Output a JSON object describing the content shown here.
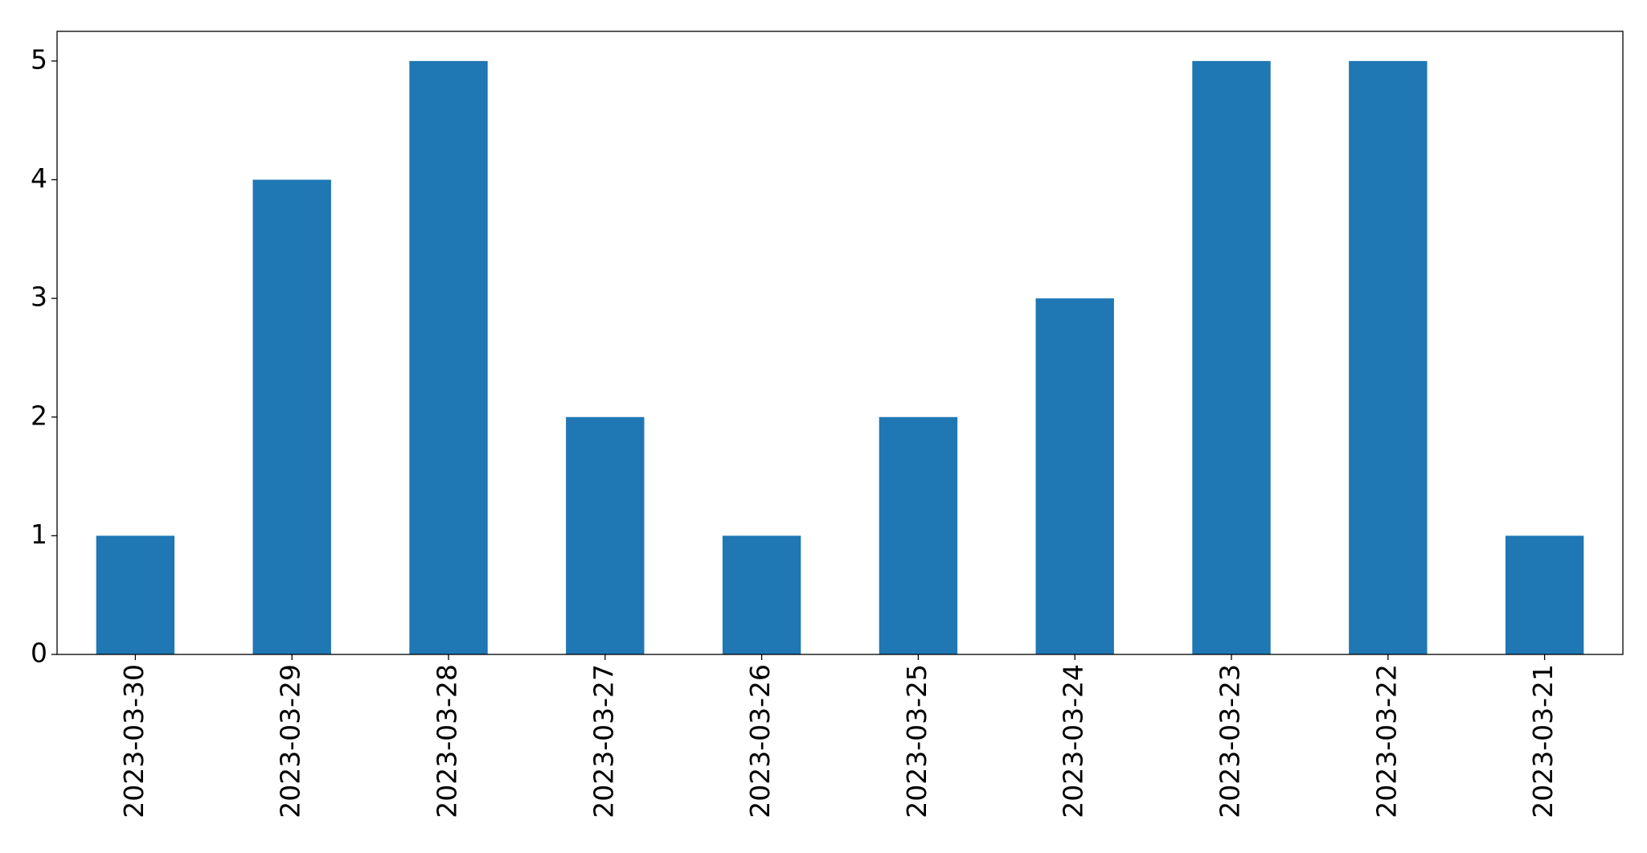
{
  "chart_data": {
    "type": "bar",
    "categories": [
      "2023-03-30",
      "2023-03-29",
      "2023-03-28",
      "2023-03-27",
      "2023-03-26",
      "2023-03-25",
      "2023-03-24",
      "2023-03-23",
      "2023-03-22",
      "2023-03-21"
    ],
    "values": [
      1,
      4,
      5,
      2,
      1,
      2,
      3,
      5,
      5,
      1
    ],
    "color": "#1f77b4",
    "ylim": [
      0,
      5.25
    ],
    "yticks": [
      0,
      1,
      2,
      3,
      4,
      5
    ],
    "grid": false
  }
}
